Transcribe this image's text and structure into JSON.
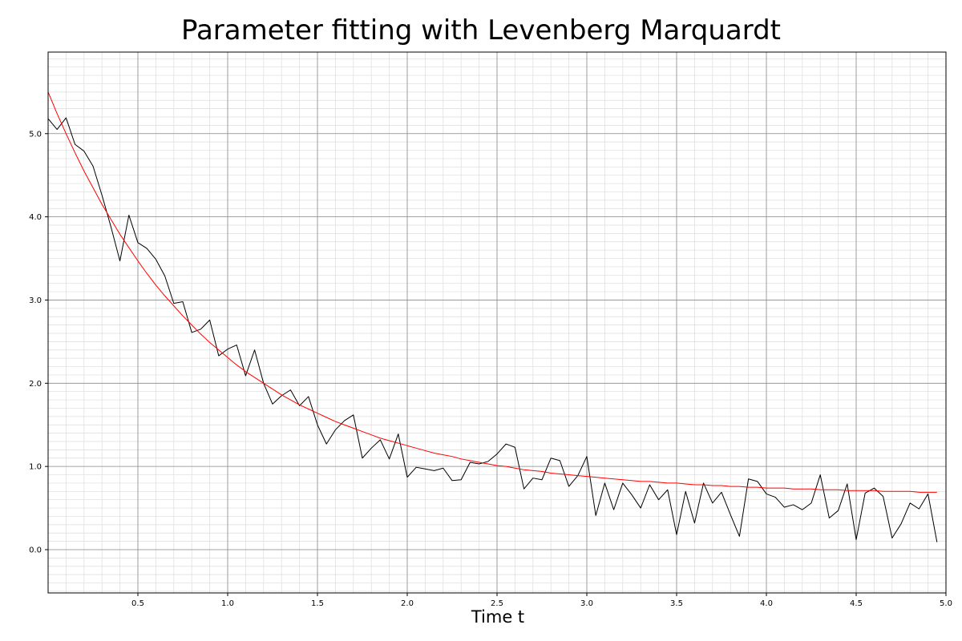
{
  "chart_data": {
    "type": "line",
    "title": "Parameter fitting with Levenberg Marquardt",
    "xlabel": "Time t",
    "ylabel": "",
    "xlim": [
      0.0,
      5.0
    ],
    "ylim": [
      -0.52,
      5.98
    ],
    "x_ticks": [
      0.5,
      1.0,
      1.5,
      2.0,
      2.5,
      3.0,
      3.5,
      4.0,
      4.5,
      5.0
    ],
    "x_tick_labels": [
      "0.5",
      "1.0",
      "1.5",
      "2.0",
      "2.5",
      "3.0",
      "3.5",
      "4.0",
      "4.5",
      "5.0"
    ],
    "y_ticks": [
      0.0,
      1.0,
      2.0,
      3.0,
      4.0,
      5.0
    ],
    "y_tick_labels": [
      "0.0",
      "1.0",
      "2.0",
      "3.0",
      "4.0",
      "5.0"
    ],
    "grid": {
      "major": true,
      "minor": true
    },
    "legend": "none",
    "series": [
      {
        "color": "#000000",
        "x": [
          0.0,
          0.05,
          0.1,
          0.15,
          0.2,
          0.25,
          0.3,
          0.35,
          0.4,
          0.45,
          0.5,
          0.55,
          0.6,
          0.65,
          0.7,
          0.75,
          0.8,
          0.85,
          0.9,
          0.95,
          1.0,
          1.05,
          1.1,
          1.15,
          1.2,
          1.25,
          1.3,
          1.35,
          1.4,
          1.45,
          1.5,
          1.55,
          1.6,
          1.65,
          1.7,
          1.75,
          1.8,
          1.85,
          1.9,
          1.95,
          2.0,
          2.05,
          2.1,
          2.15,
          2.2,
          2.25,
          2.3,
          2.35,
          2.4,
          2.45,
          2.5,
          2.55,
          2.6,
          2.65,
          2.7,
          2.75,
          2.8,
          2.85,
          2.9,
          2.95,
          3.0,
          3.05,
          3.1,
          3.15,
          3.2,
          3.25,
          3.3,
          3.35,
          3.4,
          3.45,
          3.5,
          3.55,
          3.6,
          3.65,
          3.7,
          3.75,
          3.8,
          3.85,
          3.9,
          3.95,
          4.0,
          4.05,
          4.1,
          4.15,
          4.2,
          4.25,
          4.3,
          4.35,
          4.4,
          4.45,
          4.5,
          4.55,
          4.6,
          4.65,
          4.7,
          4.75,
          4.8,
          4.85,
          4.9,
          4.95
        ],
        "values": [
          5.18,
          5.05,
          5.19,
          4.87,
          4.79,
          4.61,
          4.26,
          3.88,
          3.47,
          4.02,
          3.69,
          3.62,
          3.49,
          3.29,
          2.96,
          2.98,
          2.61,
          2.65,
          2.76,
          2.33,
          2.41,
          2.46,
          2.09,
          2.4,
          2.0,
          1.75,
          1.85,
          1.92,
          1.73,
          1.84,
          1.5,
          1.27,
          1.44,
          1.55,
          1.62,
          1.1,
          1.22,
          1.32,
          1.09,
          1.39,
          0.87,
          0.99,
          0.97,
          0.95,
          0.98,
          0.83,
          0.84,
          1.05,
          1.03,
          1.06,
          1.15,
          1.27,
          1.23,
          0.73,
          0.86,
          0.84,
          1.1,
          1.07,
          0.76,
          0.89,
          1.12,
          0.41,
          0.8,
          0.48,
          0.8,
          0.66,
          0.5,
          0.78,
          0.6,
          0.72,
          0.18,
          0.7,
          0.32,
          0.8,
          0.56,
          0.69,
          0.42,
          0.16,
          0.85,
          0.82,
          0.67,
          0.63,
          0.51,
          0.54,
          0.48,
          0.56,
          0.9,
          0.38,
          0.47,
          0.79,
          0.12,
          0.68,
          0.74,
          0.64,
          0.14,
          0.31,
          0.56,
          0.49,
          0.67,
          0.09
        ]
      },
      {
        "color": "#ff0000",
        "x": [
          0.0,
          0.05,
          0.1,
          0.15,
          0.2,
          0.25,
          0.3,
          0.35,
          0.4,
          0.45,
          0.5,
          0.55,
          0.6,
          0.65,
          0.7,
          0.75,
          0.8,
          0.85,
          0.9,
          0.95,
          1.0,
          1.05,
          1.1,
          1.15,
          1.2,
          1.25,
          1.3,
          1.35,
          1.4,
          1.45,
          1.5,
          1.55,
          1.6,
          1.65,
          1.7,
          1.75,
          1.8,
          1.85,
          1.9,
          1.95,
          2.0,
          2.05,
          2.1,
          2.15,
          2.2,
          2.25,
          2.3,
          2.35,
          2.4,
          2.45,
          2.5,
          2.55,
          2.6,
          2.65,
          2.7,
          2.75,
          2.8,
          2.85,
          2.9,
          2.95,
          3.0,
          3.05,
          3.1,
          3.15,
          3.2,
          3.25,
          3.3,
          3.35,
          3.4,
          3.45,
          3.5,
          3.55,
          3.6,
          3.65,
          3.7,
          3.75,
          3.8,
          3.85,
          3.9,
          3.95,
          4.0,
          4.05,
          4.1,
          4.15,
          4.2,
          4.25,
          4.3,
          4.35,
          4.4,
          4.45,
          4.5,
          4.55,
          4.6,
          4.65,
          4.7,
          4.75,
          4.8,
          4.85,
          4.9,
          4.95
        ],
        "values": [
          5.5,
          5.24,
          5.0,
          4.77,
          4.55,
          4.35,
          4.15,
          3.97,
          3.79,
          3.63,
          3.47,
          3.32,
          3.18,
          3.05,
          2.93,
          2.81,
          2.7,
          2.59,
          2.49,
          2.4,
          2.31,
          2.22,
          2.14,
          2.07,
          2.0,
          1.93,
          1.86,
          1.8,
          1.74,
          1.69,
          1.64,
          1.59,
          1.54,
          1.5,
          1.46,
          1.42,
          1.38,
          1.34,
          1.31,
          1.28,
          1.25,
          1.22,
          1.19,
          1.16,
          1.14,
          1.12,
          1.09,
          1.07,
          1.05,
          1.03,
          1.01,
          1.0,
          0.98,
          0.96,
          0.95,
          0.94,
          0.92,
          0.91,
          0.9,
          0.89,
          0.88,
          0.87,
          0.86,
          0.85,
          0.84,
          0.83,
          0.82,
          0.82,
          0.81,
          0.8,
          0.8,
          0.79,
          0.78,
          0.78,
          0.77,
          0.77,
          0.76,
          0.76,
          0.75,
          0.75,
          0.74,
          0.74,
          0.74,
          0.73,
          0.73,
          0.73,
          0.72,
          0.72,
          0.72,
          0.71,
          0.71,
          0.71,
          0.71,
          0.7,
          0.7,
          0.7,
          0.7,
          0.69,
          0.69,
          0.69
        ]
      }
    ]
  }
}
